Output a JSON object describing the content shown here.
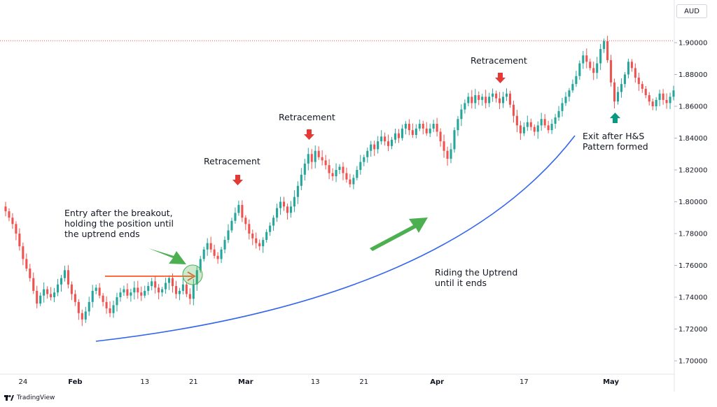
{
  "chart_data": {
    "type": "candlestick",
    "currency_label": "AUD",
    "y_ticks": [
      "1.90000",
      "1.88000",
      "1.86000",
      "1.84000",
      "1.82000",
      "1.80000",
      "1.78000",
      "1.76000",
      "1.74000",
      "1.72000",
      "1.70000"
    ],
    "ylim": [
      1.695,
      1.915
    ],
    "x_labels": [
      {
        "label": "24",
        "index": 5,
        "bold": false
      },
      {
        "label": "Feb",
        "index": 20,
        "bold": true
      },
      {
        "label": "13",
        "index": 40,
        "bold": false
      },
      {
        "label": "21",
        "index": 54,
        "bold": false
      },
      {
        "label": "Mar",
        "index": 69,
        "bold": true
      },
      {
        "label": "13",
        "index": 89,
        "bold": false
      },
      {
        "label": "21",
        "index": 103,
        "bold": false
      },
      {
        "label": "Apr",
        "index": 124,
        "bold": true
      },
      {
        "label": "17",
        "index": 149,
        "bold": false
      },
      {
        "label": "May",
        "index": 174,
        "bold": true
      }
    ],
    "resistance_level": 1.9012,
    "closes": [
      1.794,
      1.79,
      1.786,
      1.78,
      1.772,
      1.764,
      1.758,
      1.752,
      1.744,
      1.736,
      1.741,
      1.745,
      1.742,
      1.74,
      1.743,
      1.748,
      1.752,
      1.757,
      1.748,
      1.742,
      1.737,
      1.73,
      1.726,
      1.731,
      1.737,
      1.744,
      1.746,
      1.741,
      1.737,
      1.733,
      1.73,
      1.735,
      1.74,
      1.743,
      1.745,
      1.741,
      1.743,
      1.746,
      1.743,
      1.741,
      1.744,
      1.747,
      1.75,
      1.746,
      1.743,
      1.745,
      1.749,
      1.752,
      1.747,
      1.742,
      1.744,
      1.748,
      1.742,
      1.739,
      1.748,
      1.757,
      1.764,
      1.77,
      1.774,
      1.77,
      1.766,
      1.764,
      1.77,
      1.776,
      1.782,
      1.788,
      1.793,
      1.798,
      1.79,
      1.786,
      1.78,
      1.777,
      1.774,
      1.772,
      1.776,
      1.781,
      1.785,
      1.79,
      1.796,
      1.8,
      1.797,
      1.793,
      1.797,
      1.803,
      1.81,
      1.817,
      1.824,
      1.83,
      1.825,
      1.832,
      1.828,
      1.826,
      1.823,
      1.818,
      1.816,
      1.82,
      1.822,
      1.818,
      1.814,
      1.811,
      1.815,
      1.82,
      1.825,
      1.828,
      1.832,
      1.836,
      1.833,
      1.838,
      1.841,
      1.838,
      1.835,
      1.839,
      1.843,
      1.84,
      1.846,
      1.849,
      1.845,
      1.842,
      1.846,
      1.849,
      1.846,
      1.843,
      1.846,
      1.849,
      1.844,
      1.838,
      1.832,
      1.827,
      1.833,
      1.845,
      1.852,
      1.858,
      1.862,
      1.866,
      1.862,
      1.867,
      1.864,
      1.866,
      1.862,
      1.866,
      1.868,
      1.865,
      1.862,
      1.866,
      1.868,
      1.861,
      1.854,
      1.848,
      1.843,
      1.847,
      1.85,
      1.847,
      1.844,
      1.848,
      1.852,
      1.848,
      1.845,
      1.849,
      1.853,
      1.857,
      1.862,
      1.866,
      1.87,
      1.874,
      1.879,
      1.887,
      1.892,
      1.888,
      1.884,
      1.881,
      1.887,
      1.896,
      1.901,
      1.889,
      1.875,
      1.863,
      1.869,
      1.874,
      1.88,
      1.888,
      1.884,
      1.878,
      1.874,
      1.871,
      1.867,
      1.863,
      1.86,
      1.864,
      1.868,
      1.864,
      1.862,
      1.866,
      1.87
    ]
  },
  "annotations": {
    "entry": [
      "Entry after the breakout,",
      "holding the position until",
      "the uptrend ends"
    ],
    "retracement_1": "Retracement",
    "retracement_2": "Retracement",
    "retracement_3": "Retracement",
    "riding": [
      "Riding the Uptrend",
      "until it ends"
    ],
    "exit": [
      "Exit after H&S",
      "Pattern formed"
    ]
  },
  "colors": {
    "up": "#26a69a",
    "down": "#ef5350",
    "trend_curve": "#3366ee",
    "green_arrow": "#4caf50",
    "red_marker": "#e53935",
    "teal_marker": "#089981",
    "breakout_line": "#ff5722"
  },
  "brand": "TradingView"
}
